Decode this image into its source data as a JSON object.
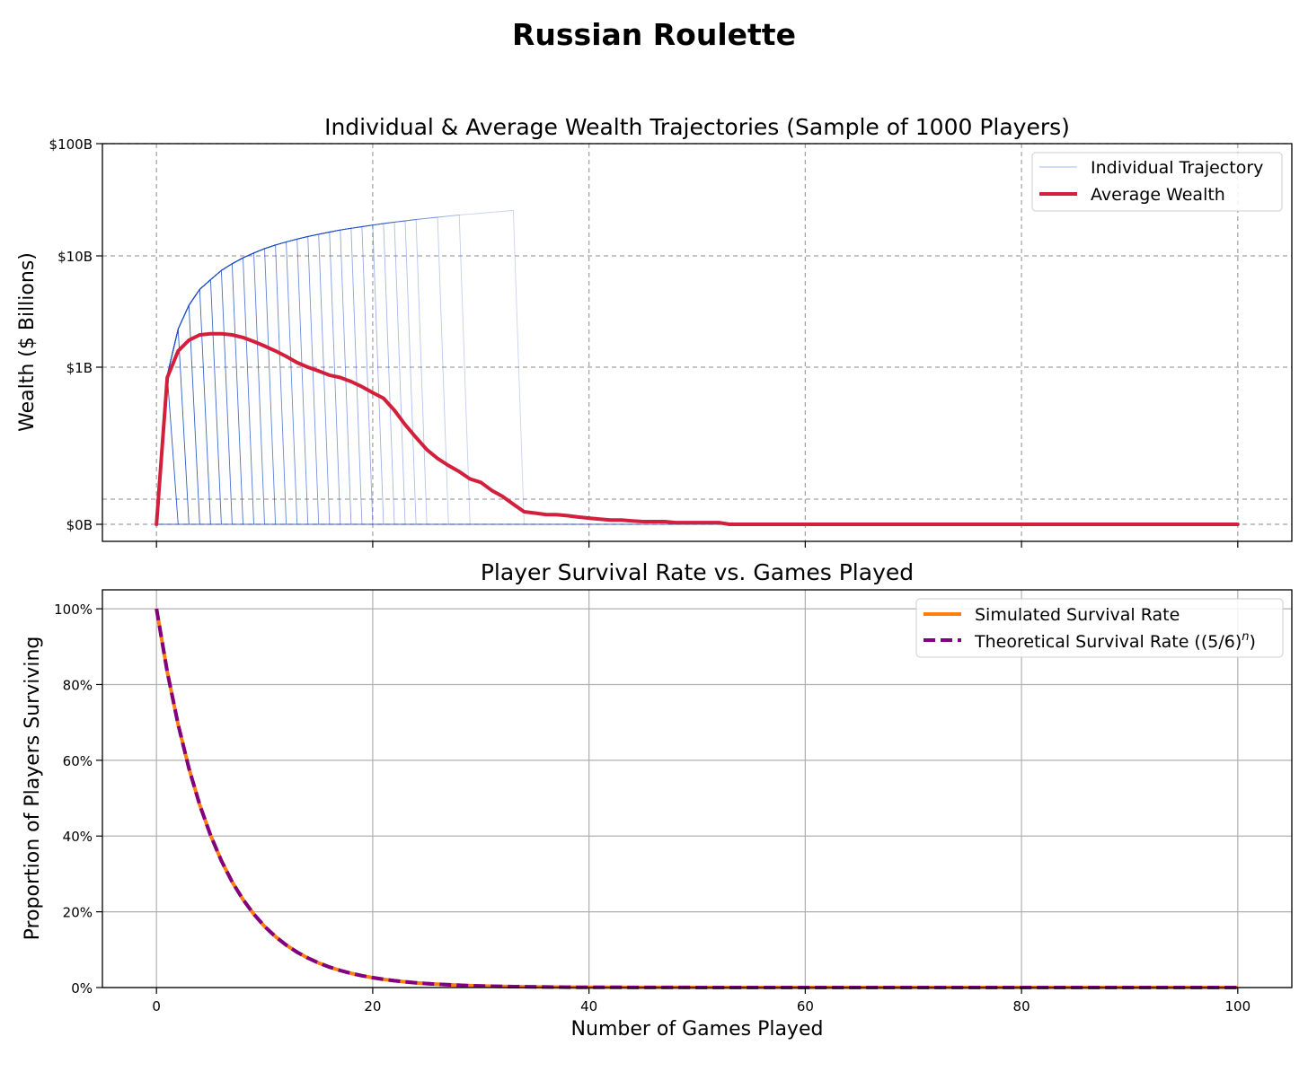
{
  "figure": {
    "title": "Russian Roulette"
  },
  "chart_data": [
    {
      "type": "line",
      "title": "Individual & Average Wealth Trajectories (Sample of 1000 Players)",
      "xlabel": "",
      "ylabel": "Wealth ($ Billions)",
      "xlim": [
        -5,
        105
      ],
      "x_ticks": [
        0,
        20,
        40,
        60,
        80,
        100
      ],
      "x_tick_labels_visible": false,
      "y_tick_labels": [
        "$100B",
        "$10B",
        "$1B",
        "$0B"
      ],
      "y_scale": "symlog",
      "y_lim_billions": [
        -0.02,
        100
      ],
      "grid": "dashed",
      "legend": {
        "placement": "top-right",
        "entries": [
          "Individual Trajectory",
          "Average Wealth"
        ]
      },
      "series": [
        {
          "name": "Individual Trajectory",
          "kind": "fan",
          "color": "#1f4fc4",
          "envelope_billions": [
            [
              0,
              0.0
            ],
            [
              1,
              0.8
            ],
            [
              2,
              2.2
            ],
            [
              3,
              3.6
            ],
            [
              4,
              5.0
            ],
            [
              5,
              6.1
            ],
            [
              6,
              7.4
            ],
            [
              7,
              8.5
            ],
            [
              8,
              9.6
            ],
            [
              9,
              10.6
            ],
            [
              10,
              11.6
            ],
            [
              11,
              12.5
            ],
            [
              12,
              13.3
            ],
            [
              13,
              14.1
            ],
            [
              14,
              14.9
            ],
            [
              15,
              15.6
            ],
            [
              16,
              16.3
            ],
            [
              17,
              17.0
            ],
            [
              18,
              17.6
            ],
            [
              19,
              18.2
            ],
            [
              20,
              18.8
            ],
            [
              21,
              19.4
            ],
            [
              22,
              20.0
            ],
            [
              23,
              20.5
            ],
            [
              24,
              21.1
            ],
            [
              25,
              21.6
            ],
            [
              26,
              22.1
            ],
            [
              27,
              22.6
            ],
            [
              28,
              23.1
            ],
            [
              29,
              23.6
            ],
            [
              30,
              24.0
            ],
            [
              31,
              24.5
            ],
            [
              32,
              24.9
            ],
            [
              33,
              25.4
            ]
          ],
          "elimination_games": [
            2,
            3,
            4,
            5,
            6,
            7,
            8,
            9,
            10,
            11,
            12,
            13,
            14,
            15,
            16,
            17,
            18,
            19,
            20,
            21,
            22,
            23,
            24,
            25,
            27,
            29,
            34
          ]
        },
        {
          "name": "Average Wealth",
          "color": "#d21f3c",
          "points_billions": [
            [
              0,
              0.0
            ],
            [
              1,
              0.75
            ],
            [
              2,
              1.4
            ],
            [
              3,
              1.75
            ],
            [
              4,
              1.95
            ],
            [
              5,
              2.0
            ],
            [
              6,
              2.0
            ],
            [
              7,
              1.95
            ],
            [
              8,
              1.85
            ],
            [
              9,
              1.7
            ],
            [
              10,
              1.55
            ],
            [
              11,
              1.4
            ],
            [
              12,
              1.25
            ],
            [
              13,
              1.1
            ],
            [
              14,
              1.0
            ],
            [
              15,
              0.9
            ],
            [
              16,
              0.8
            ],
            [
              17,
              0.75
            ],
            [
              18,
              0.67
            ],
            [
              19,
              0.58
            ],
            [
              20,
              0.49
            ],
            [
              21,
              0.42
            ],
            [
              22,
              0.3
            ],
            [
              23,
              0.2
            ],
            [
              24,
              0.14
            ],
            [
              25,
              0.1
            ],
            [
              26,
              0.078
            ],
            [
              27,
              0.064
            ],
            [
              28,
              0.054
            ],
            [
              29,
              0.044
            ],
            [
              30,
              0.04
            ],
            [
              31,
              0.032
            ],
            [
              32,
              0.027
            ],
            [
              33,
              0.02
            ],
            [
              34,
              0.0125
            ],
            [
              35,
              0.0112
            ],
            [
              36,
              0.0097
            ],
            [
              37,
              0.0096
            ],
            [
              38,
              0.0086
            ],
            [
              39,
              0.0072
            ],
            [
              40,
              0.0062
            ],
            [
              41,
              0.0051
            ],
            [
              42,
              0.0042
            ],
            [
              43,
              0.0042
            ],
            [
              44,
              0.0034
            ],
            [
              45,
              0.0027
            ],
            [
              46,
              0.0027
            ],
            [
              47,
              0.0027
            ],
            [
              48,
              0.0017
            ],
            [
              49,
              0.0017
            ],
            [
              50,
              0.0017
            ],
            [
              51,
              0.0017
            ],
            [
              52,
              0.0017
            ],
            [
              53,
              0.0
            ],
            [
              60,
              0.0
            ],
            [
              70,
              0.0
            ],
            [
              80,
              0.0
            ],
            [
              90,
              0.0
            ],
            [
              100,
              0.0
            ]
          ]
        }
      ]
    },
    {
      "type": "line",
      "title": "Player Survival Rate vs. Games Played",
      "xlabel": "Number of Games Played",
      "ylabel": "Proportion of Players Surviving",
      "xlim": [
        -5,
        105
      ],
      "ylim": [
        0,
        105
      ],
      "x_ticks": [
        0,
        20,
        40,
        60,
        80,
        100
      ],
      "y_ticks": [
        0,
        20,
        40,
        60,
        80,
        100
      ],
      "y_tick_labels": [
        "0%",
        "20%",
        "40%",
        "60%",
        "80%",
        "100%"
      ],
      "grid": "solid",
      "legend": {
        "placement": "top-right",
        "entries": [
          "Simulated Survival Rate",
          "Theoretical Survival Rate ((5/6)"
        ]
      },
      "legend_superscript": "n",
      "legend_suffix": ")",
      "series": [
        {
          "name": "Simulated Survival Rate",
          "color": "#ff7f0e",
          "style": "solid",
          "formula": "100*(5/6)^n",
          "n_range": [
            0,
            100
          ]
        },
        {
          "name": "Theoretical Survival Rate ((5/6)^n)",
          "color": "#800080",
          "style": "dashed",
          "formula": "100*(5/6)^n",
          "n_range": [
            0,
            100
          ]
        }
      ]
    }
  ]
}
